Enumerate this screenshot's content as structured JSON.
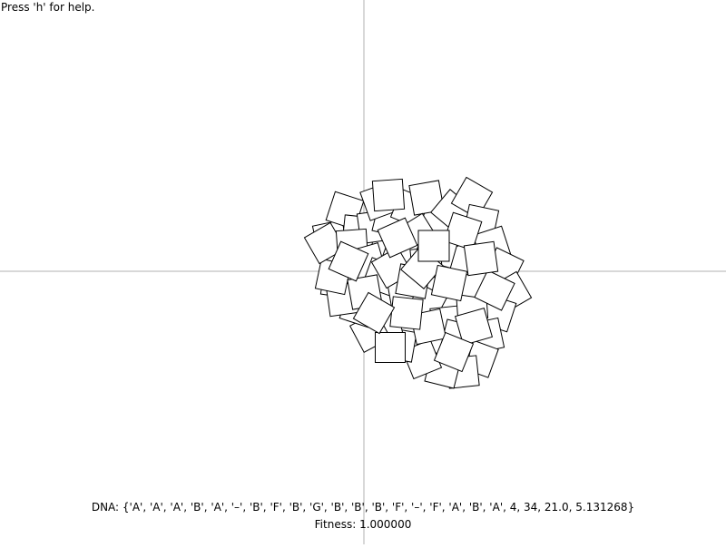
{
  "help_hint": "Press 'h' for help.",
  "dna_text": "DNA: {'A', 'A', 'A', 'B', 'A', '–', 'B', 'F', 'B', 'G', 'B', 'B', 'B', 'F', '–', 'F', 'A', 'B', 'A', 4, 34, 21.0, 5.131268}",
  "fitness_text": "Fitness: 1.000000",
  "colors": {
    "background": "#ffffff",
    "axis": "#b0b0b0",
    "square_stroke": "#000000",
    "square_fill": "#ffffff"
  },
  "drawing": {
    "description_shape": "square",
    "shape_count_visible": "many overlapping rotated squares clustered near axes origin"
  }
}
